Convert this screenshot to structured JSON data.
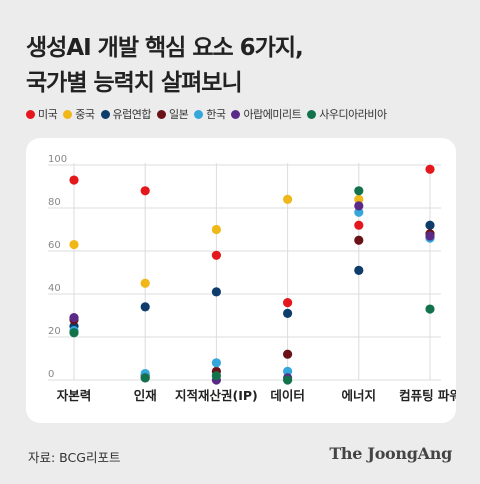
{
  "title": {
    "line1": "생성AI 개발 핵심 요소 6가지,",
    "line2": "국가별 능력치 살펴보니"
  },
  "source": "자료: BCG리포트",
  "logo": "The JoongAng",
  "chart_data": {
    "type": "scatter",
    "categories": [
      "자본력",
      "인재",
      "지적재산권(IP)",
      "데이터",
      "에너지",
      "컴퓨팅 파워"
    ],
    "ylim": [
      0,
      100
    ],
    "yticks": [
      0,
      20,
      40,
      60,
      80,
      100
    ],
    "grid": true,
    "legend_position": "top",
    "series": [
      {
        "name": "미국",
        "color": "#e4171d",
        "values": [
          93,
          88,
          58,
          36,
          72,
          98
        ]
      },
      {
        "name": "중국",
        "color": "#f0b719",
        "values": [
          63,
          45,
          70,
          84,
          84,
          68
        ]
      },
      {
        "name": "유럽연합",
        "color": "#0e3c6b",
        "values": [
          25,
          34,
          41,
          31,
          51,
          72
        ]
      },
      {
        "name": "일본",
        "color": "#6a1218",
        "values": [
          28,
          2,
          4,
          12,
          65,
          68
        ]
      },
      {
        "name": "한국",
        "color": "#35a7da",
        "values": [
          23,
          3,
          8,
          4,
          78,
          66
        ]
      },
      {
        "name": "아랍에미리트",
        "color": "#5a2a86",
        "values": [
          29,
          1,
          0,
          1,
          81,
          67
        ]
      },
      {
        "name": "사우디아라비아",
        "color": "#12724b",
        "values": [
          22,
          1,
          2,
          0,
          88,
          33
        ]
      }
    ]
  }
}
